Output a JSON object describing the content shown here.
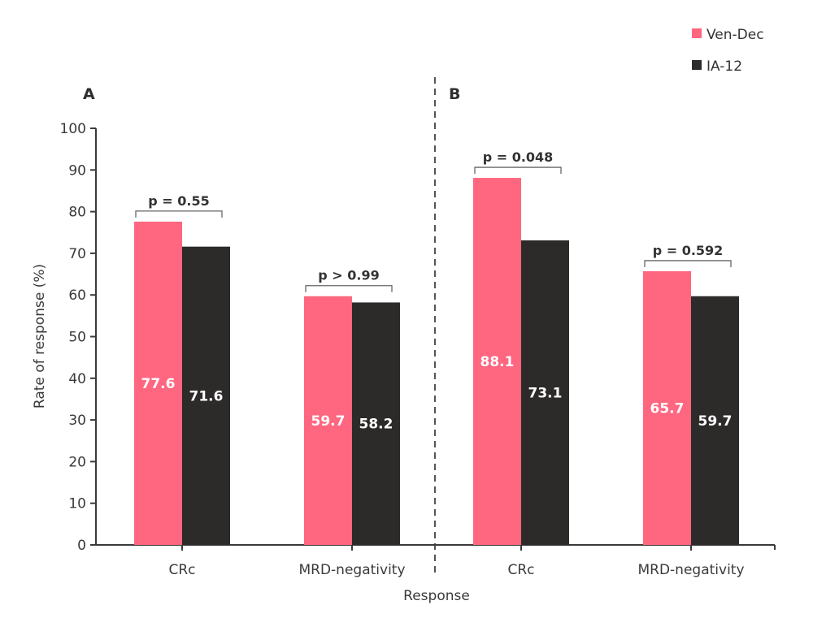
{
  "chart_data": {
    "type": "bar",
    "xlabel": "Response",
    "ylabel": "Rate of response (%)",
    "ylim": [
      0,
      100
    ],
    "yticks": [
      "0",
      "10",
      "20",
      "30",
      "40",
      "50",
      "60",
      "70",
      "80",
      "90",
      "100"
    ],
    "grid": false,
    "legend_position": "top-right",
    "colors": {
      "Ven-Dec": "#ff6680",
      "IA-12": "#2d2a2a"
    },
    "legend": [
      "Ven-Dec",
      "IA-12"
    ],
    "panels": [
      {
        "label": "A",
        "categories": [
          "CRc",
          "MRD-negativity"
        ],
        "series": [
          {
            "name": "Ven-Dec",
            "values": [
              77.6,
              59.7
            ],
            "labels": [
              "77.6",
              "59.7"
            ]
          },
          {
            "name": "IA-12",
            "values": [
              71.6,
              58.2
            ],
            "labels": [
              "71.6",
              "58.2"
            ]
          }
        ],
        "pvalues": [
          "p = 0.55",
          "p > 0.99"
        ]
      },
      {
        "label": "B",
        "categories": [
          "CRc",
          "MRD-negativity"
        ],
        "series": [
          {
            "name": "Ven-Dec",
            "values": [
              88.1,
              65.7
            ],
            "labels": [
              "88.1",
              "65.7"
            ]
          },
          {
            "name": "IA-12",
            "values": [
              73.1,
              59.7
            ],
            "labels": [
              "73.1",
              "59.7"
            ]
          }
        ],
        "pvalues": [
          "p = 0.048",
          "p = 0.592"
        ]
      }
    ]
  }
}
